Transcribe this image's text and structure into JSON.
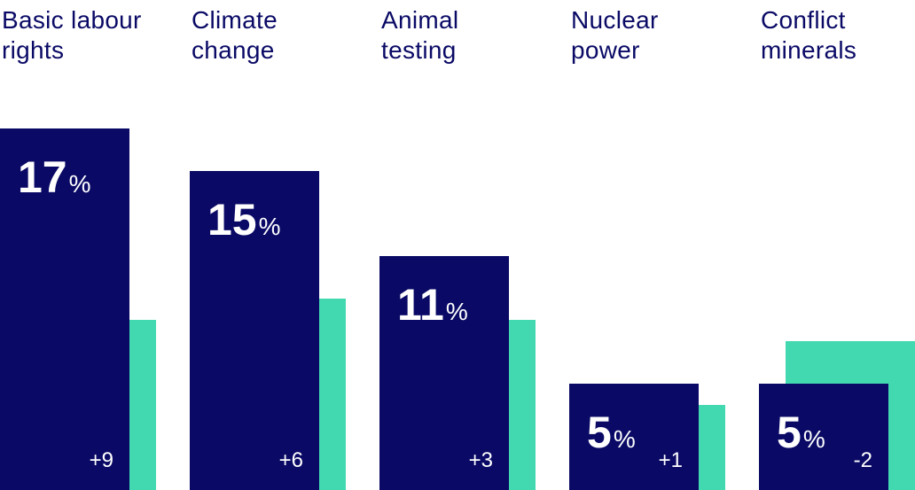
{
  "chart_data": {
    "type": "bar",
    "categories": [
      [
        "Basic labour",
        "rights"
      ],
      [
        "Climate",
        "change"
      ],
      [
        "Animal",
        "testing"
      ],
      [
        "Nuclear",
        "power"
      ],
      [
        "Conflict",
        "minerals"
      ]
    ],
    "series": [
      {
        "values": [
          17,
          15,
          11,
          5,
          5
        ]
      },
      {
        "values": [
          8,
          9,
          8,
          4,
          7
        ]
      }
    ],
    "value_labels": [
      "17",
      "15",
      "11",
      "5",
      "5"
    ],
    "unit": "%",
    "change_labels": [
      "+9",
      "+6",
      "+3",
      "+1",
      "-2"
    ],
    "ylim": [
      0,
      20.5
    ],
    "colors": {
      "current": "#0a0a66",
      "previous": "#43d9b0",
      "text": "#0a0a66"
    }
  }
}
